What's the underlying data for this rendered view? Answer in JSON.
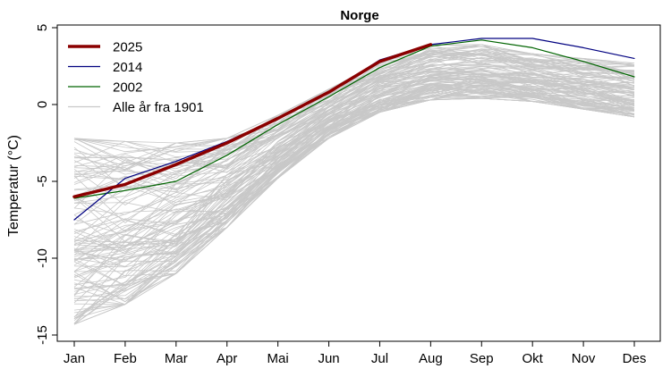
{
  "chart_data": {
    "type": "line",
    "title": "Norge",
    "xlabel": "",
    "ylabel": "Temperatur (°C)",
    "categories": [
      "Jan",
      "Feb",
      "Mar",
      "Apr",
      "Mai",
      "Jun",
      "Jul",
      "Aug",
      "Sep",
      "Okt",
      "Nov",
      "Des"
    ],
    "yticks": [
      5,
      0,
      -5,
      -10,
      -15
    ],
    "ylim": [
      -15,
      5
    ],
    "grid": false,
    "legend_position": "top-left",
    "legend": [
      {
        "label": "2025",
        "color": "#8b0000"
      },
      {
        "label": "2014",
        "color": "#000080"
      },
      {
        "label": "2002",
        "color": "#006400"
      },
      {
        "label": "Alle år fra 1901",
        "color": "#c8c8c8"
      }
    ],
    "series": [
      {
        "name": "2025",
        "color": "#8b0000",
        "values": [
          -6.0,
          -5.2,
          -3.9,
          -2.5,
          -0.9,
          0.8,
          2.8,
          3.9,
          null,
          null,
          null,
          null
        ]
      },
      {
        "name": "2014",
        "color": "#000080",
        "values": [
          -7.5,
          -4.8,
          -3.7,
          -2.4,
          -0.9,
          0.8,
          2.9,
          3.9,
          4.3,
          4.3,
          3.7,
          3.0
        ]
      },
      {
        "name": "2002",
        "color": "#006400",
        "values": [
          -6.1,
          -5.6,
          -5.0,
          -3.3,
          -1.3,
          0.5,
          2.4,
          3.8,
          4.2,
          3.7,
          2.8,
          1.8
        ]
      }
    ],
    "background_band": {
      "name": "Alle år fra 1901",
      "color": "#c8c8c8",
      "min": [
        -14.3,
        -13.0,
        -11.0,
        -8.0,
        -4.8,
        -2.2,
        -0.5,
        0.3,
        0.4,
        0.2,
        -0.3,
        -0.8
      ],
      "max": [
        -2.2,
        -2.4,
        -2.5,
        -2.2,
        -0.7,
        1.0,
        2.8,
        3.9,
        3.9,
        3.3,
        3.0,
        2.7
      ]
    }
  }
}
